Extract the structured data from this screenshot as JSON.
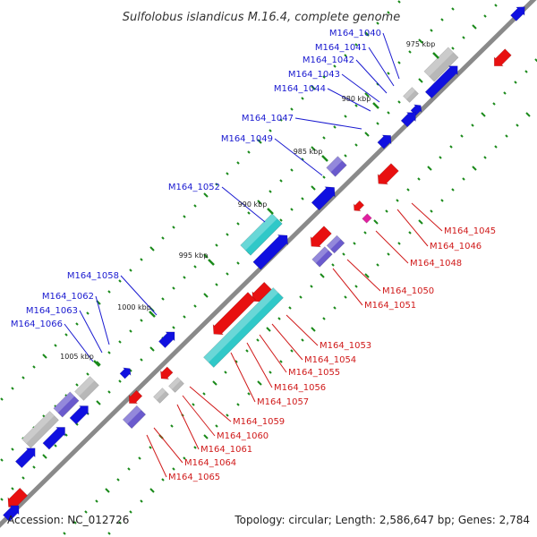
{
  "title": "Sulfolobus islandicus M.16.4, complete genome",
  "accession": "Accession: NC_012726",
  "summary": "Topology: circular; Length: 2,586,647 bp; Genes: 2,784",
  "colors": {
    "forward": "#1010e0",
    "reverse": "#e81010",
    "forward_label": "#1a1ad0",
    "reverse_label": "#d01a1a",
    "backbone": "#8a8a8a",
    "tick": "#1a8a1a",
    "rna": "#30c8c8",
    "pseudo": "#b8b8b8",
    "other": "#6a5acd",
    "mobile": "#e020a0"
  },
  "kbp_ticks": [
    "975 kbp",
    "980 kbp",
    "985 kbp",
    "990 kbp",
    "995 kbp",
    "1000 kbp",
    "1005 kbp"
  ],
  "forward_labels": [
    "M164_1040",
    "M164_1041",
    "M164_1042",
    "M164_1043",
    "M164_1044",
    "M164_1047",
    "M164_1049",
    "M164_1052",
    "M164_1058",
    "M164_1062",
    "M164_1063",
    "M164_1066"
  ],
  "reverse_labels": [
    "M164_1045",
    "M164_1046",
    "M164_1048",
    "M164_1050",
    "M164_1051",
    "M164_1053",
    "M164_1054",
    "M164_1055",
    "M164_1056",
    "M164_1057",
    "M164_1059",
    "M164_1060",
    "M164_1061",
    "M164_1064",
    "M164_1065"
  ]
}
